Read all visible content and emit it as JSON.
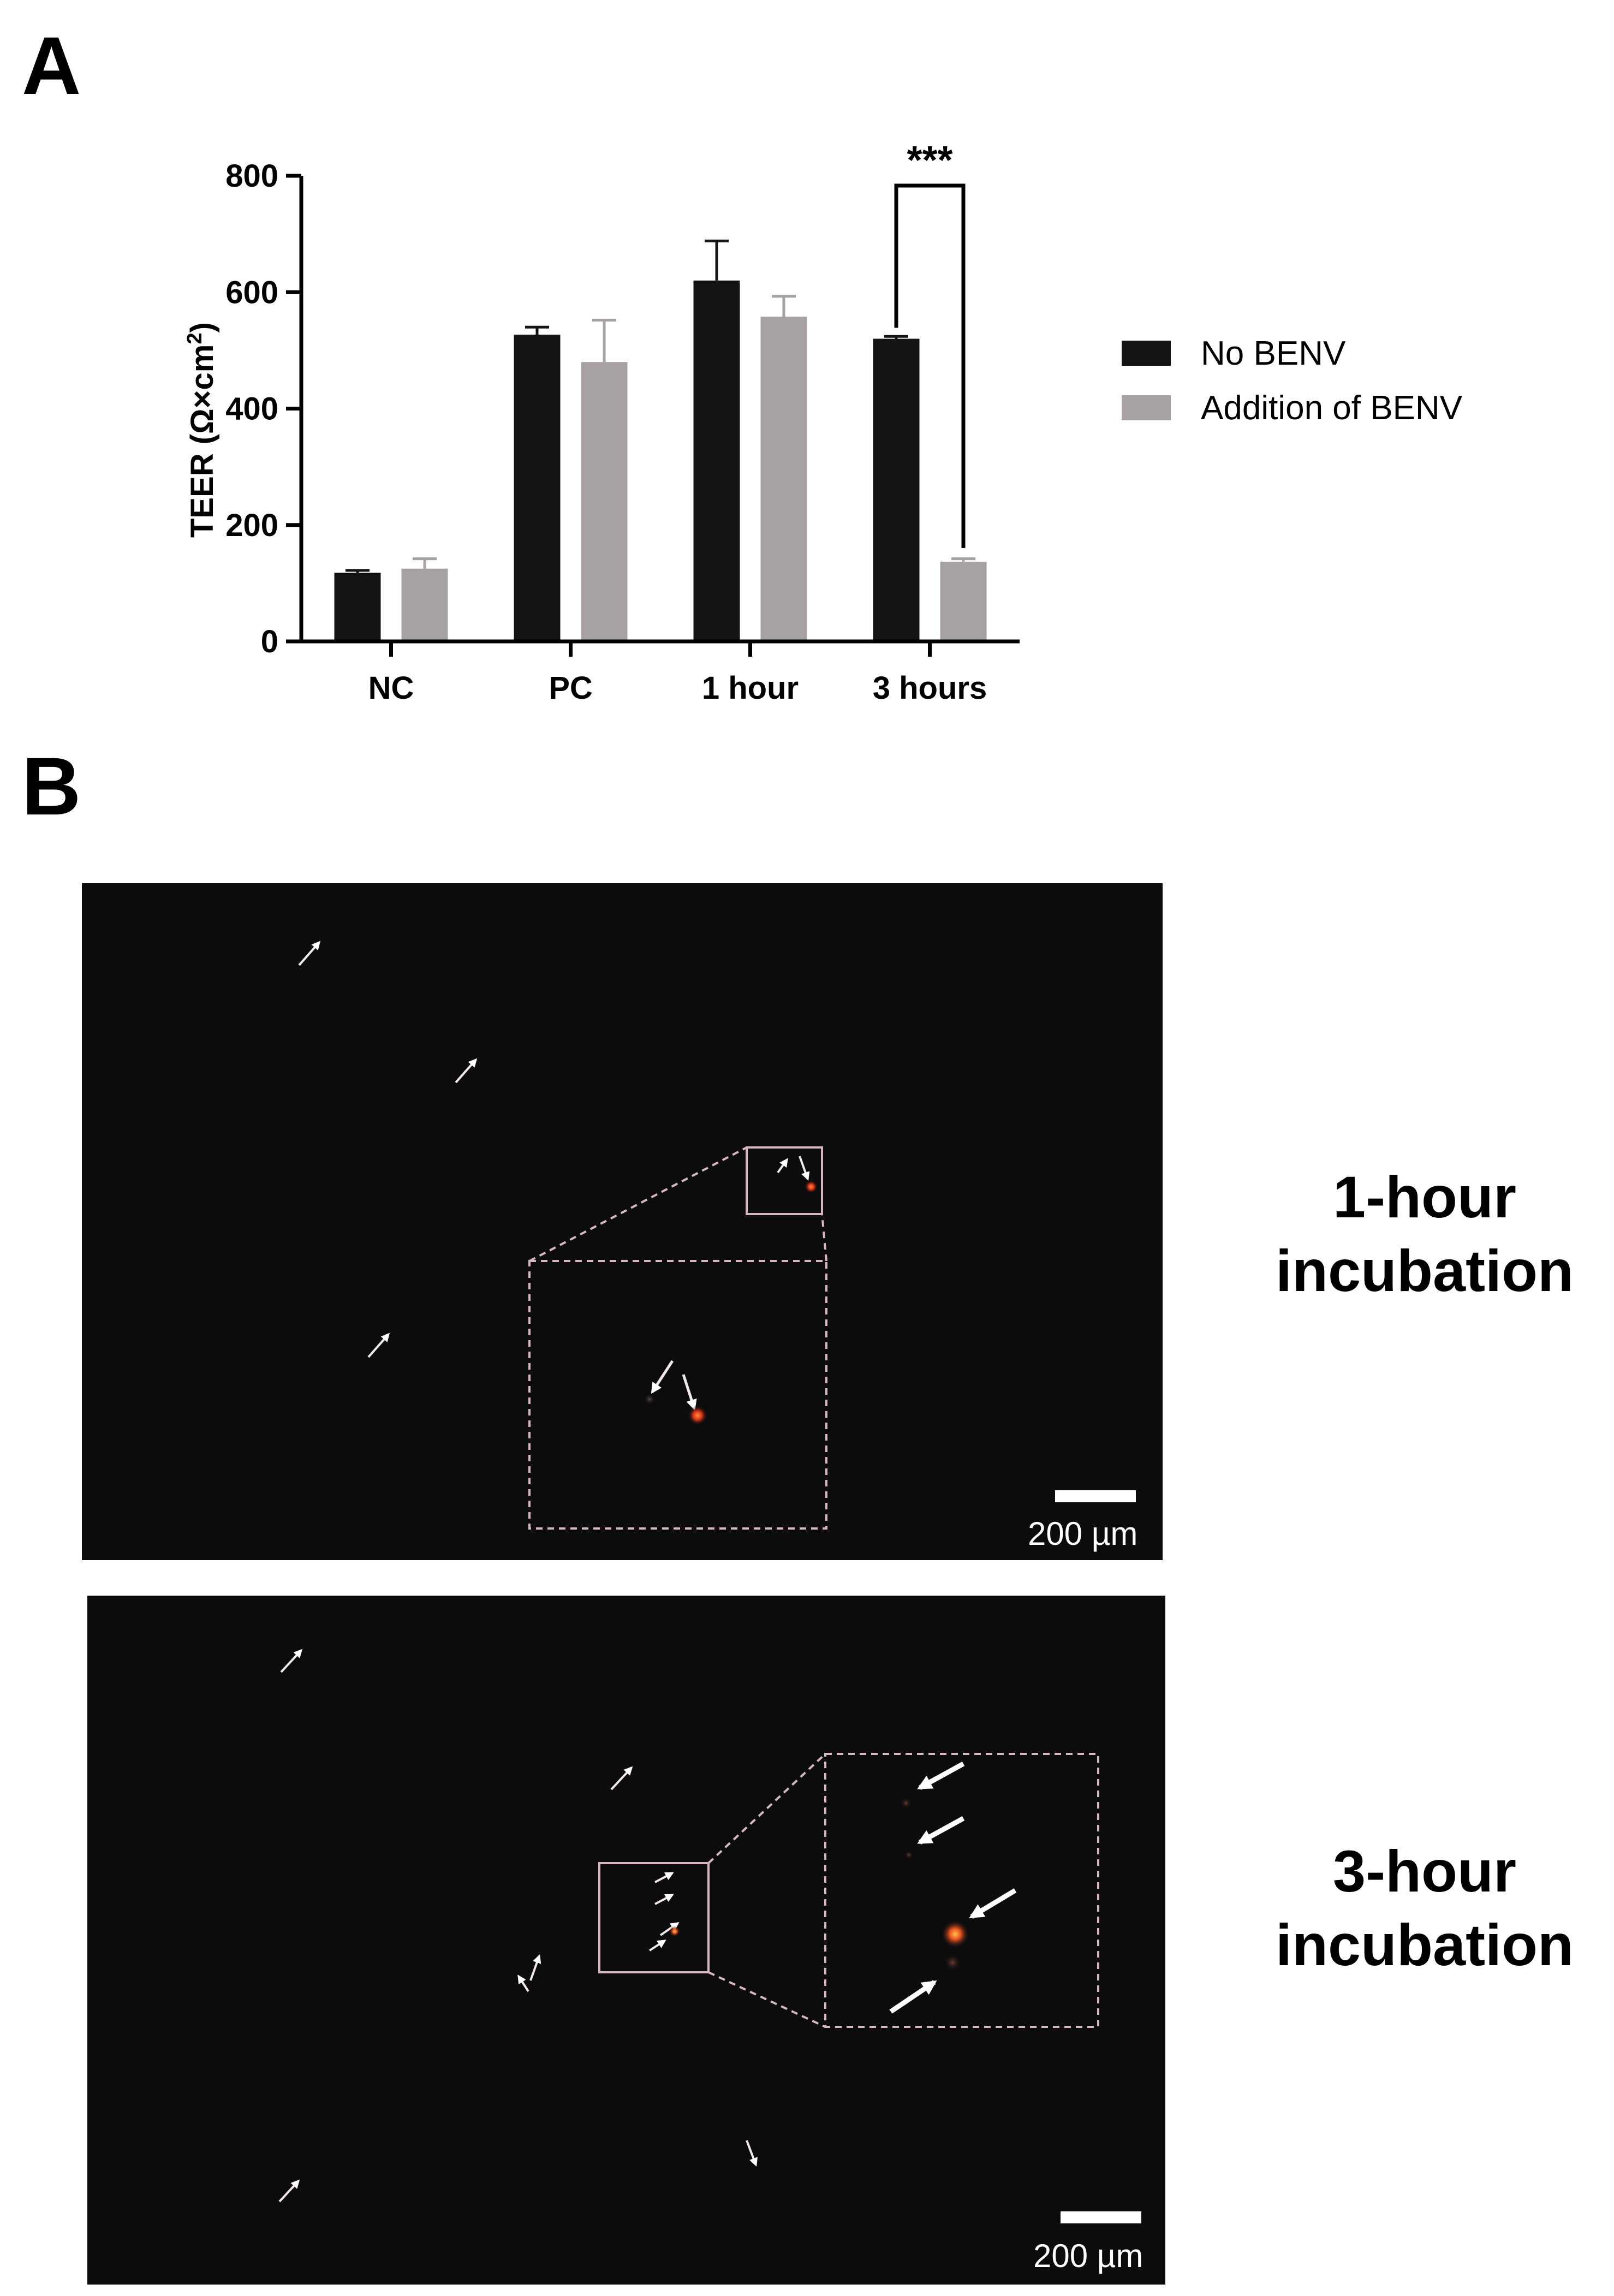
{
  "panels": {
    "a_letter": "A",
    "b_letter": "B"
  },
  "chart_data": {
    "type": "bar",
    "categories": [
      "NC",
      "PC",
      "1 hour",
      "3 hours"
    ],
    "series": [
      {
        "name": "No BENV",
        "color": "#141414",
        "values": [
          118,
          527,
          620,
          520
        ],
        "errors": [
          4,
          13,
          68,
          4
        ]
      },
      {
        "name": "Addition of BENV",
        "color": "#a7a1a3",
        "values": [
          125,
          480,
          558,
          137
        ],
        "errors": [
          17,
          72,
          35,
          5
        ]
      }
    ],
    "ylabel_main": "TEER (Ω×cm",
    "ylabel_sup": "2",
    "ylabel_end": ")",
    "ylim": [
      0,
      800
    ],
    "yticks": [
      0,
      200,
      400,
      600,
      800
    ],
    "ytick_labels": [
      "0",
      "200",
      "400",
      "600",
      "800"
    ],
    "legend_position": "right",
    "annotation": {
      "text": "***",
      "category": "3 hours"
    }
  },
  "micrographs": [
    {
      "caption_line1": "1-hour",
      "caption_line2": "incubation",
      "scale_label": "200 µm"
    },
    {
      "caption_line1": "3-hour",
      "caption_line2": "incubation",
      "scale_label": "200 µm"
    }
  ]
}
